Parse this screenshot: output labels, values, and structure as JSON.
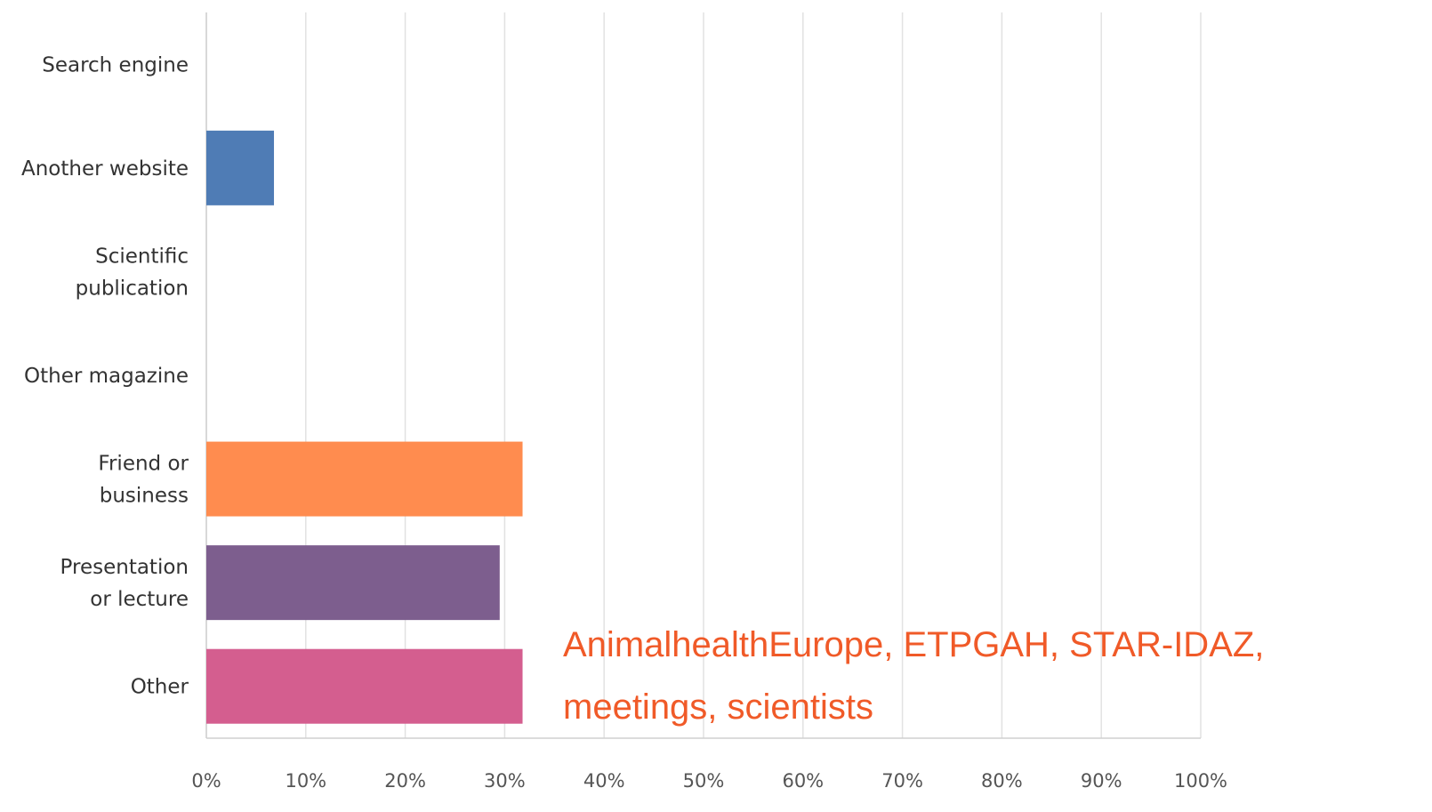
{
  "chart_data": {
    "type": "bar",
    "orientation": "horizontal",
    "categories": [
      "Search engine",
      "Another website",
      "Scientific\npublication",
      "Other magazine",
      "Friend or\nbusiness",
      "Presentation\nor lecture",
      "Other"
    ],
    "values": [
      0,
      6.8,
      0,
      0,
      31.8,
      29.5,
      31.8
    ],
    "colors": [
      "#2fa89b",
      "#4f7cb5",
      "#f0b73e",
      "#8fba4c",
      "#ff8c4f",
      "#7d5e8e",
      "#d45e8f"
    ],
    "xlim": [
      0,
      100
    ],
    "xticks": [
      {
        "value": 0,
        "label": "0%"
      },
      {
        "value": 10,
        "label": "10%"
      },
      {
        "value": 20,
        "label": "20%"
      },
      {
        "value": 30,
        "label": "30%"
      },
      {
        "value": 40,
        "label": "40%"
      },
      {
        "value": 50,
        "label": "50%"
      },
      {
        "value": 60,
        "label": "60%"
      },
      {
        "value": 70,
        "label": "70%"
      },
      {
        "value": 80,
        "label": "80%"
      },
      {
        "value": 90,
        "label": "90%"
      },
      {
        "value": 100,
        "label": "100%"
      }
    ],
    "grid": true,
    "annotation": "AnimalhealthEurope, ETPGAH, STAR-IDAZ, meetings, scientists"
  }
}
